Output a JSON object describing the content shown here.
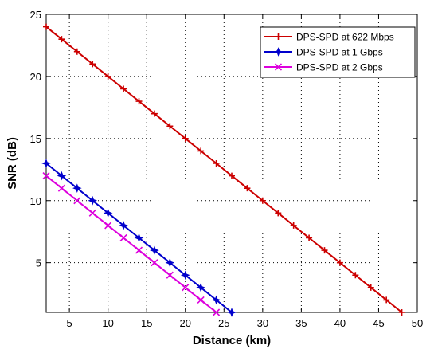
{
  "chart_data": {
    "type": "line",
    "title": "",
    "xlabel": "Distance (km)",
    "ylabel": "SNR (dB)",
    "xlim": [
      2,
      50
    ],
    "ylim": [
      1,
      25
    ],
    "xticks": [
      5,
      10,
      15,
      20,
      25,
      30,
      35,
      40,
      45,
      50
    ],
    "yticks": [
      5,
      10,
      15,
      20,
      25
    ],
    "grid": true,
    "legend_position": "top-right",
    "series": [
      {
        "name": "DPS-SPD at 622 Mbps",
        "color": "#cc0000",
        "marker": "plus",
        "x": [
          2,
          4,
          6,
          8,
          10,
          12,
          14,
          16,
          18,
          20,
          22,
          24,
          26,
          28,
          30,
          32,
          34,
          36,
          38,
          40,
          42,
          44,
          46,
          48
        ],
        "y": [
          24,
          23,
          22,
          21,
          20,
          19,
          18,
          17,
          16,
          15,
          14,
          13,
          12,
          11,
          10,
          9,
          8,
          7,
          6,
          5,
          4,
          3,
          2,
          1
        ]
      },
      {
        "name": "DPS-SPD at 1 Gbps",
        "color": "#0000cc",
        "marker": "star",
        "x": [
          2,
          4,
          6,
          8,
          10,
          12,
          14,
          16,
          18,
          20,
          22,
          24,
          26
        ],
        "y": [
          13,
          12,
          11,
          10,
          9,
          8,
          7,
          6,
          5,
          4,
          3,
          2,
          1
        ]
      },
      {
        "name": "DPS-SPD at 2 Gbps",
        "color": "#dd00dd",
        "marker": "cross",
        "x": [
          2,
          4,
          6,
          8,
          10,
          12,
          14,
          16,
          18,
          20,
          22,
          24
        ],
        "y": [
          12,
          11,
          10,
          9,
          8,
          7,
          6,
          5,
          4,
          3,
          2,
          1
        ]
      }
    ]
  }
}
